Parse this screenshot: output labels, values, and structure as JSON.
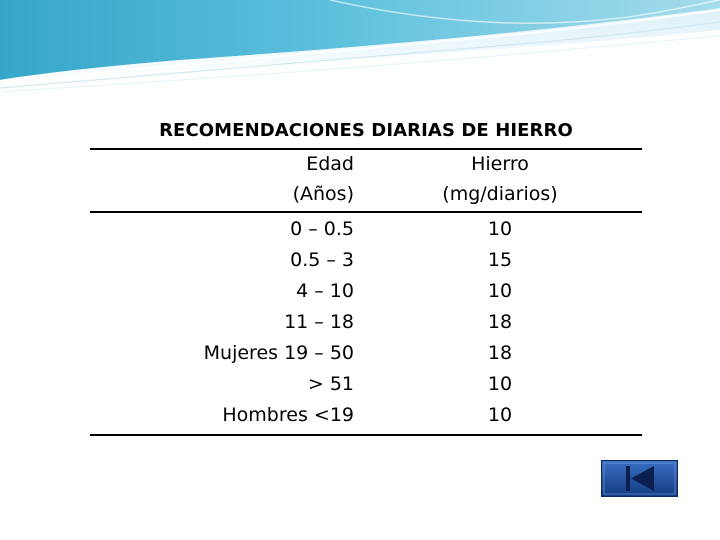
{
  "table": {
    "title": "RECOMENDACIONES DIARIAS DE HIERRO",
    "header": {
      "age_line1": "Edad",
      "age_line2": "(Años)",
      "iron_line1": "Hierro",
      "iron_line2": "(mg/diarios)"
    },
    "rows": [
      {
        "age": "0 – 0.5",
        "iron": "10"
      },
      {
        "age": "0.5 – 3",
        "iron": "15"
      },
      {
        "age": "4 – 10",
        "iron": "10"
      },
      {
        "age": "11 – 18",
        "iron": "18"
      },
      {
        "age": "Mujeres 19 – 50",
        "iron": "18"
      },
      {
        "age": "> 51",
        "iron": "10"
      },
      {
        "age": "Hombres <19",
        "iron": "10"
      }
    ]
  },
  "navigation": {
    "back_icon": "skip-back-icon"
  },
  "colors": {
    "banner_teal": "#4fb7d6",
    "banner_light": "#bfe4f0",
    "nav_button": "#1f4ea0",
    "nav_button_border": "#0c2a63"
  }
}
